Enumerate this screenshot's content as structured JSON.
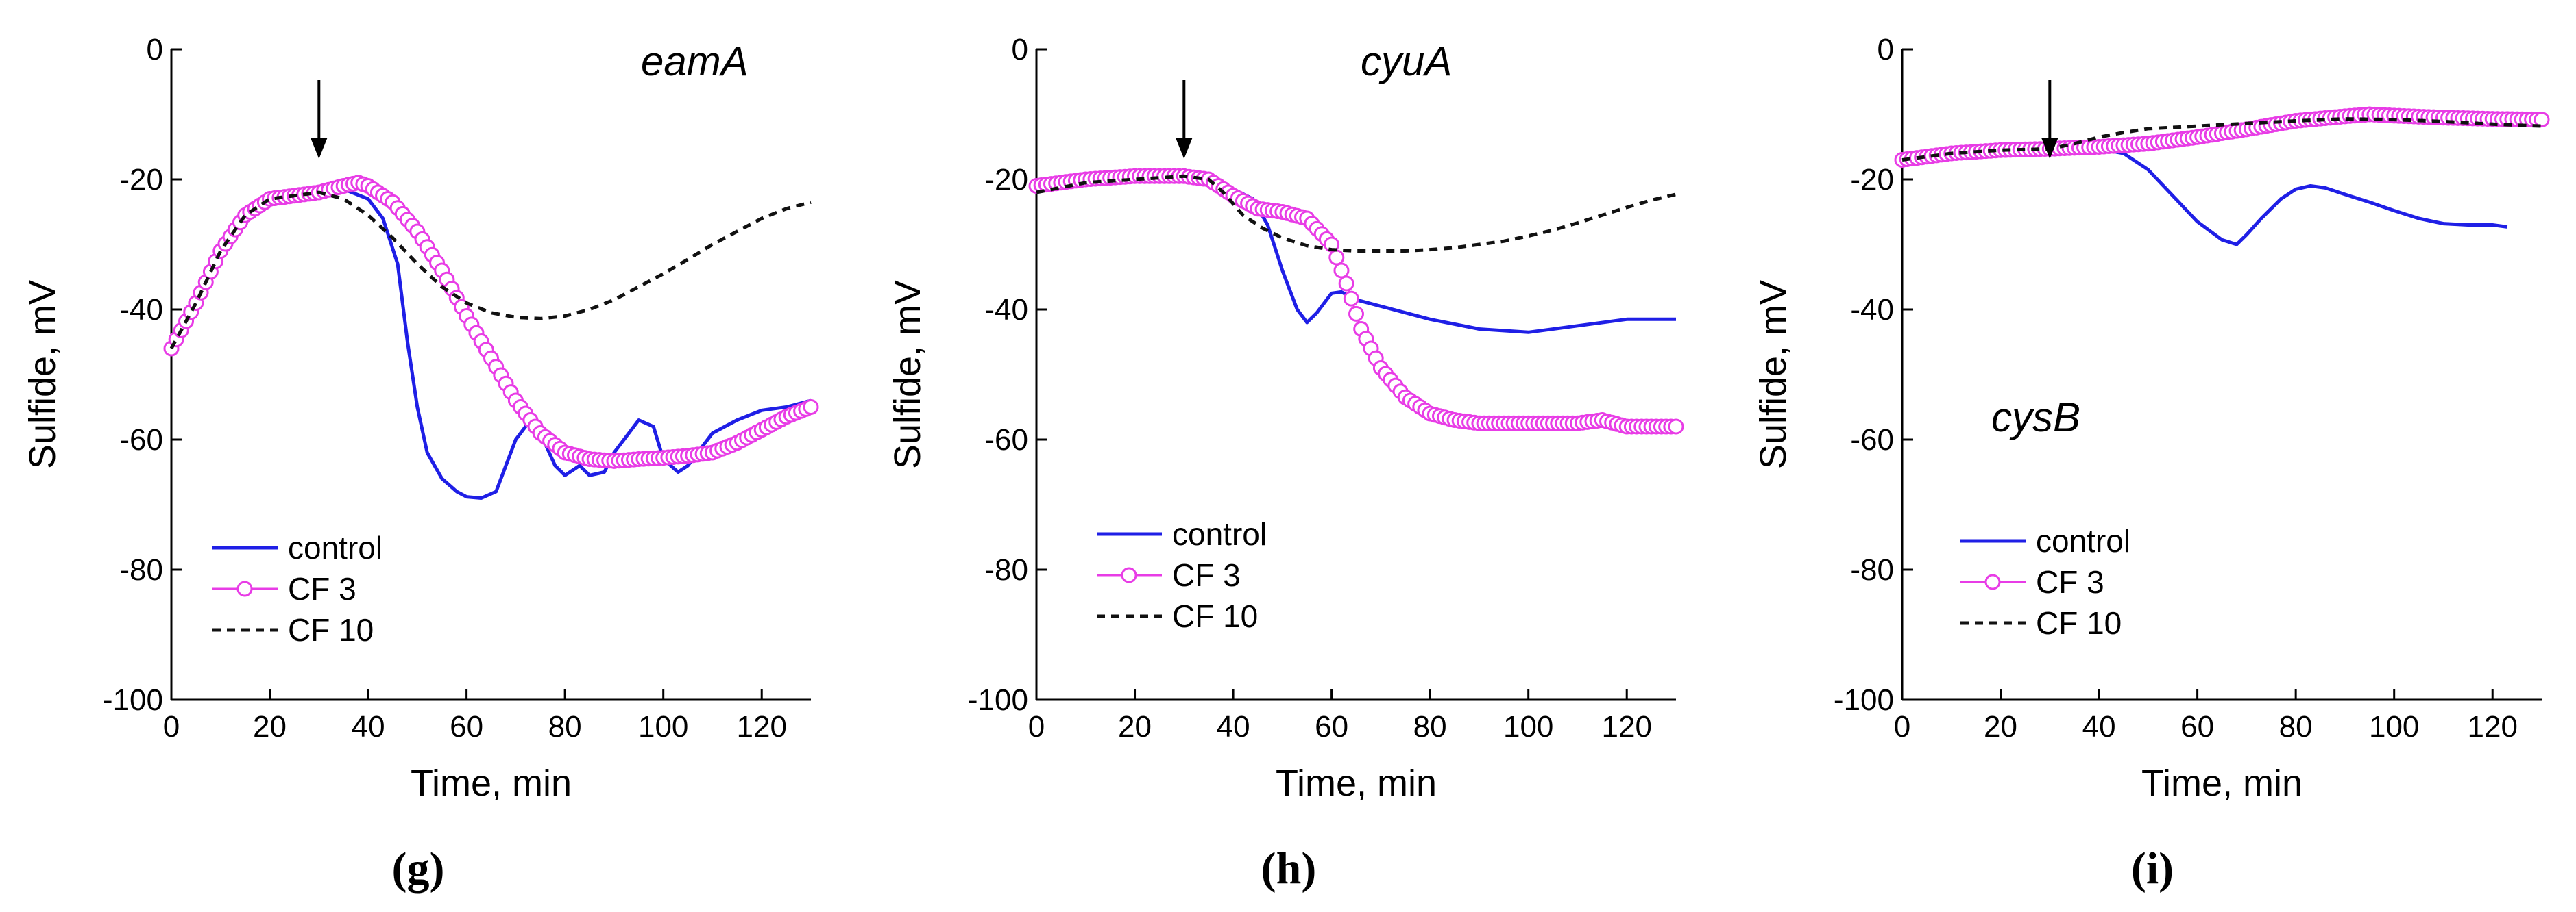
{
  "chart_data": [
    {
      "type": "line",
      "panel_label": "(g)",
      "gene": "eamA",
      "xlabel": "Time, min",
      "ylabel": "Sulfide, mV",
      "xlim": [
        0,
        130
      ],
      "ylim": [
        -100,
        0
      ],
      "xticks": [
        "0",
        "20",
        "40",
        "60",
        "80",
        "100",
        "120"
      ],
      "yticks": [
        "0",
        "-20",
        "-40",
        "-60",
        "-80",
        "-100"
      ],
      "arrow_x": 30,
      "series": [
        {
          "name": "control",
          "style": "solid",
          "color": "#1f1fe6",
          "x": [
            0,
            5,
            10,
            15,
            20,
            25,
            30,
            35,
            40,
            43,
            46,
            48,
            50,
            52,
            55,
            58,
            60,
            63,
            66,
            68,
            70,
            73,
            75,
            78,
            80,
            83,
            85,
            88,
            90,
            93,
            95,
            98,
            100,
            103,
            105,
            108,
            110,
            115,
            120,
            125,
            130
          ],
          "y": [
            -46,
            -40,
            -32,
            -26,
            -23.5,
            -22.5,
            -22,
            -21.5,
            -23,
            -26,
            -33,
            -45,
            -55,
            -62,
            -66,
            -68,
            -68.8,
            -69,
            -68,
            -64,
            -60,
            -57,
            -59,
            -64,
            -65.5,
            -64,
            -65.5,
            -65,
            -62,
            -59,
            -57,
            -58,
            -63,
            -65,
            -64,
            -61,
            -59,
            -57,
            -55.5,
            -55,
            -54
          ]
        },
        {
          "name": "CF 3",
          "style": "circle",
          "color": "#e83ce6",
          "x": [
            0,
            5,
            10,
            15,
            20,
            25,
            30,
            35,
            38,
            40,
            45,
            50,
            55,
            60,
            65,
            70,
            75,
            80,
            85,
            90,
            95,
            100,
            105,
            110,
            115,
            120,
            125,
            130
          ],
          "y": [
            -46,
            -39,
            -31,
            -25.5,
            -23,
            -22.5,
            -22,
            -21,
            -20.5,
            -21,
            -23.5,
            -28,
            -34,
            -41,
            -47.5,
            -54,
            -59,
            -62,
            -63,
            -63.3,
            -63,
            -62.8,
            -62.5,
            -62,
            -60.5,
            -58.5,
            -56.5,
            -55
          ]
        },
        {
          "name": "CF 10",
          "style": "dashed",
          "color": "#111111",
          "x": [
            0,
            5,
            10,
            15,
            20,
            25,
            30,
            35,
            40,
            45,
            50,
            55,
            60,
            65,
            70,
            75,
            80,
            85,
            90,
            95,
            100,
            105,
            110,
            115,
            120,
            125,
            130
          ],
          "y": [
            -46,
            -39,
            -31,
            -25.5,
            -23,
            -22.5,
            -22,
            -23,
            -25.5,
            -29,
            -33,
            -36.5,
            -39,
            -40.5,
            -41.2,
            -41.4,
            -41,
            -40,
            -38.5,
            -36.5,
            -34.5,
            -32.3,
            -30,
            -28,
            -26,
            -24.5,
            -23.5
          ]
        }
      ]
    },
    {
      "type": "line",
      "panel_label": "(h)",
      "gene": "cyuA",
      "xlabel": "Time, min",
      "ylabel": "Sulfide, mV",
      "xlim": [
        0,
        130
      ],
      "ylim": [
        -100,
        0
      ],
      "xticks": [
        "0",
        "20",
        "40",
        "60",
        "80",
        "100",
        "120"
      ],
      "yticks": [
        "0",
        "-20",
        "-40",
        "-60",
        "-80",
        "-100"
      ],
      "arrow_x": 30,
      "series": [
        {
          "name": "control",
          "style": "solid",
          "color": "#1f1fe6",
          "x": [
            0,
            10,
            20,
            30,
            35,
            40,
            44,
            47,
            50,
            53,
            55,
            57,
            60,
            62,
            65,
            70,
            80,
            90,
            100,
            110,
            120,
            130
          ],
          "y": [
            -21,
            -20,
            -19.5,
            -19.5,
            -20,
            -21.5,
            -23,
            -27,
            -34,
            -40,
            -42,
            -40.5,
            -37.5,
            -37.3,
            -38.5,
            -39.5,
            -41.5,
            -43,
            -43.5,
            -42.5,
            -41.5,
            -41.5
          ]
        },
        {
          "name": "CF 3",
          "style": "circle",
          "color": "#e83ce6",
          "x": [
            0,
            10,
            20,
            30,
            35,
            40,
            45,
            50,
            55,
            60,
            63,
            66,
            70,
            75,
            80,
            85,
            90,
            100,
            110,
            115,
            120,
            130
          ],
          "y": [
            -21,
            -20,
            -19.5,
            -19.5,
            -20,
            -22.5,
            -24.5,
            -25,
            -26,
            -30,
            -36,
            -43,
            -49,
            -53.5,
            -56,
            -57,
            -57.5,
            -57.5,
            -57.5,
            -57,
            -58,
            -58
          ]
        },
        {
          "name": "CF 10",
          "style": "dashed",
          "color": "#111111",
          "x": [
            0,
            10,
            20,
            30,
            35,
            38,
            42,
            46,
            50,
            55,
            60,
            65,
            70,
            75,
            80,
            85,
            90,
            95,
            100,
            105,
            110,
            115,
            120,
            125,
            130
          ],
          "y": [
            -22,
            -20.5,
            -20,
            -19.5,
            -20,
            -22,
            -25.5,
            -27.5,
            -29,
            -30.2,
            -30.8,
            -31,
            -31,
            -31,
            -30.8,
            -30.5,
            -30,
            -29.5,
            -28.7,
            -27.8,
            -26.7,
            -25.5,
            -24.3,
            -23.2,
            -22.3
          ]
        }
      ]
    },
    {
      "type": "line",
      "panel_label": "(i)",
      "gene": "cysB",
      "xlabel": "Time, min",
      "ylabel": "Sulfide, mV",
      "xlim": [
        0,
        130
      ],
      "ylim": [
        -100,
        0
      ],
      "xticks": [
        "0",
        "20",
        "40",
        "60",
        "80",
        "100",
        "120"
      ],
      "yticks": [
        "0",
        "-20",
        "-40",
        "-60",
        "-80",
        "-100"
      ],
      "arrow_x": 30,
      "series": [
        {
          "name": "control",
          "style": "solid",
          "color": "#1f1fe6",
          "x": [
            0,
            10,
            20,
            30,
            40,
            45,
            50,
            55,
            60,
            65,
            68,
            70,
            73,
            77,
            80,
            83,
            86,
            90,
            95,
            100,
            105,
            110,
            115,
            120,
            123
          ],
          "y": [
            -17,
            -16,
            -15.5,
            -15.3,
            -15.3,
            -16,
            -18.5,
            -22.5,
            -26.5,
            -29.3,
            -30,
            -28.5,
            -26,
            -23,
            -21.5,
            -21,
            -21.3,
            -22.3,
            -23.5,
            -24.8,
            -26,
            -26.8,
            -27,
            -27,
            -27.3
          ]
        },
        {
          "name": "CF 3",
          "style": "circle",
          "color": "#e83ce6",
          "x": [
            0,
            10,
            20,
            30,
            40,
            50,
            60,
            70,
            80,
            90,
            95,
            100,
            110,
            120,
            130
          ],
          "y": [
            -17,
            -16,
            -15.5,
            -15.3,
            -15,
            -14.5,
            -13.5,
            -12.3,
            -11,
            -10.3,
            -10,
            -10.2,
            -10.5,
            -10.7,
            -10.8
          ]
        },
        {
          "name": "CF 10",
          "style": "dashed",
          "color": "#111111",
          "x": [
            0,
            10,
            20,
            30,
            35,
            40,
            45,
            50,
            55,
            60,
            65,
            70,
            80,
            90,
            100,
            110,
            120,
            130
          ],
          "y": [
            -17,
            -16,
            -15.5,
            -15.3,
            -14.5,
            -13.5,
            -12.8,
            -12.2,
            -12,
            -11.8,
            -11.6,
            -11.4,
            -11,
            -10.7,
            -10.8,
            -11.1,
            -11.5,
            -11.8
          ]
        }
      ]
    }
  ]
}
